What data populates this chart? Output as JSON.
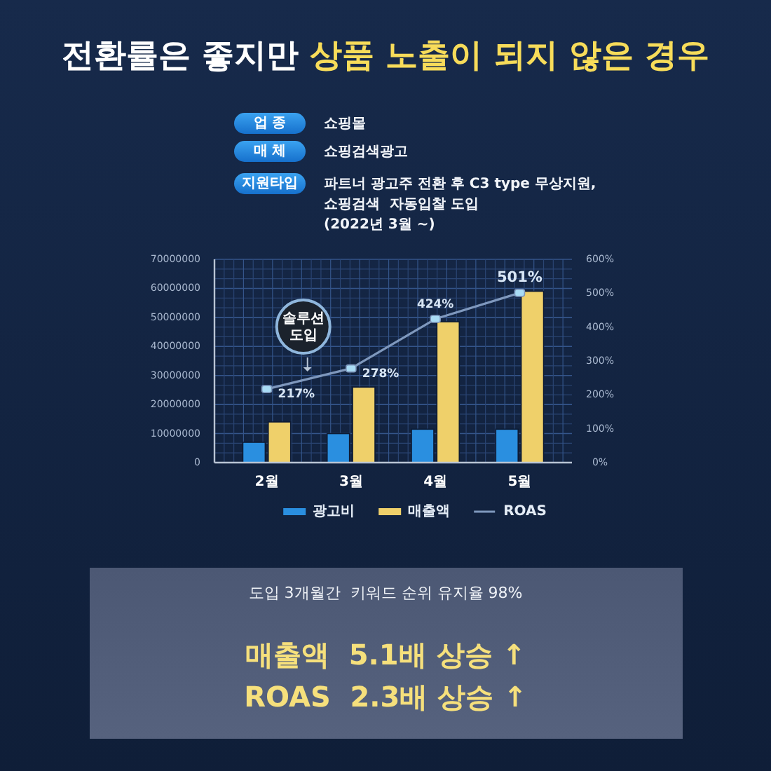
{
  "chart_data": {
    "type": "bar",
    "title": "전환률은 좋지만 상품 노출이 되지 않은 경우",
    "categories": [
      "2월",
      "3월",
      "4월",
      "5월"
    ],
    "series": [
      {
        "name": "광고비",
        "color": "#2a8fe0",
        "values": [
          7000000,
          10000000,
          11500000,
          11500000
        ]
      },
      {
        "name": "매출액",
        "color": "#efd06a",
        "values": [
          14000000,
          26000000,
          48500000,
          59000000
        ]
      },
      {
        "name": "ROAS",
        "type": "line",
        "axis": "y2",
        "color": "#7f98bd",
        "values": [
          217,
          278,
          424,
          501
        ],
        "value_labels": [
          "217%",
          "278%",
          "424%",
          "501%"
        ]
      }
    ],
    "ylim": [
      0,
      70000000
    ],
    "yticks": [
      0,
      10000000,
      20000000,
      30000000,
      40000000,
      50000000,
      60000000,
      70000000
    ],
    "y2lim": [
      0,
      600
    ],
    "y2ticks": [
      {
        "value": 0,
        "label": "0%"
      },
      {
        "value": 100,
        "label": "100%"
      },
      {
        "value": 200,
        "label": "200%"
      },
      {
        "value": 300,
        "label": "300%"
      },
      {
        "value": 400,
        "label": "400%"
      },
      {
        "value": 500,
        "label": "500%"
      },
      {
        "value": 600,
        "label": "600%"
      }
    ],
    "grid": true,
    "legend": "bottom",
    "marker": "square",
    "annotations": [
      "업 종",
      "쇼핑몰",
      "매 체",
      "쇼핑검색광고",
      "지원타입",
      "파트너 광고주 전환 후 C3 type 무상지원,\n쇼핑검색  자동입찰 도입\n(2022년 3월 ~)",
      "솔루션\n도입",
      "도입 3개월간  키워드 순위 유지율 98%",
      "매출액  5.1배 상승 ↑",
      "ROAS  2.3배 상승 ↑"
    ]
  }
}
